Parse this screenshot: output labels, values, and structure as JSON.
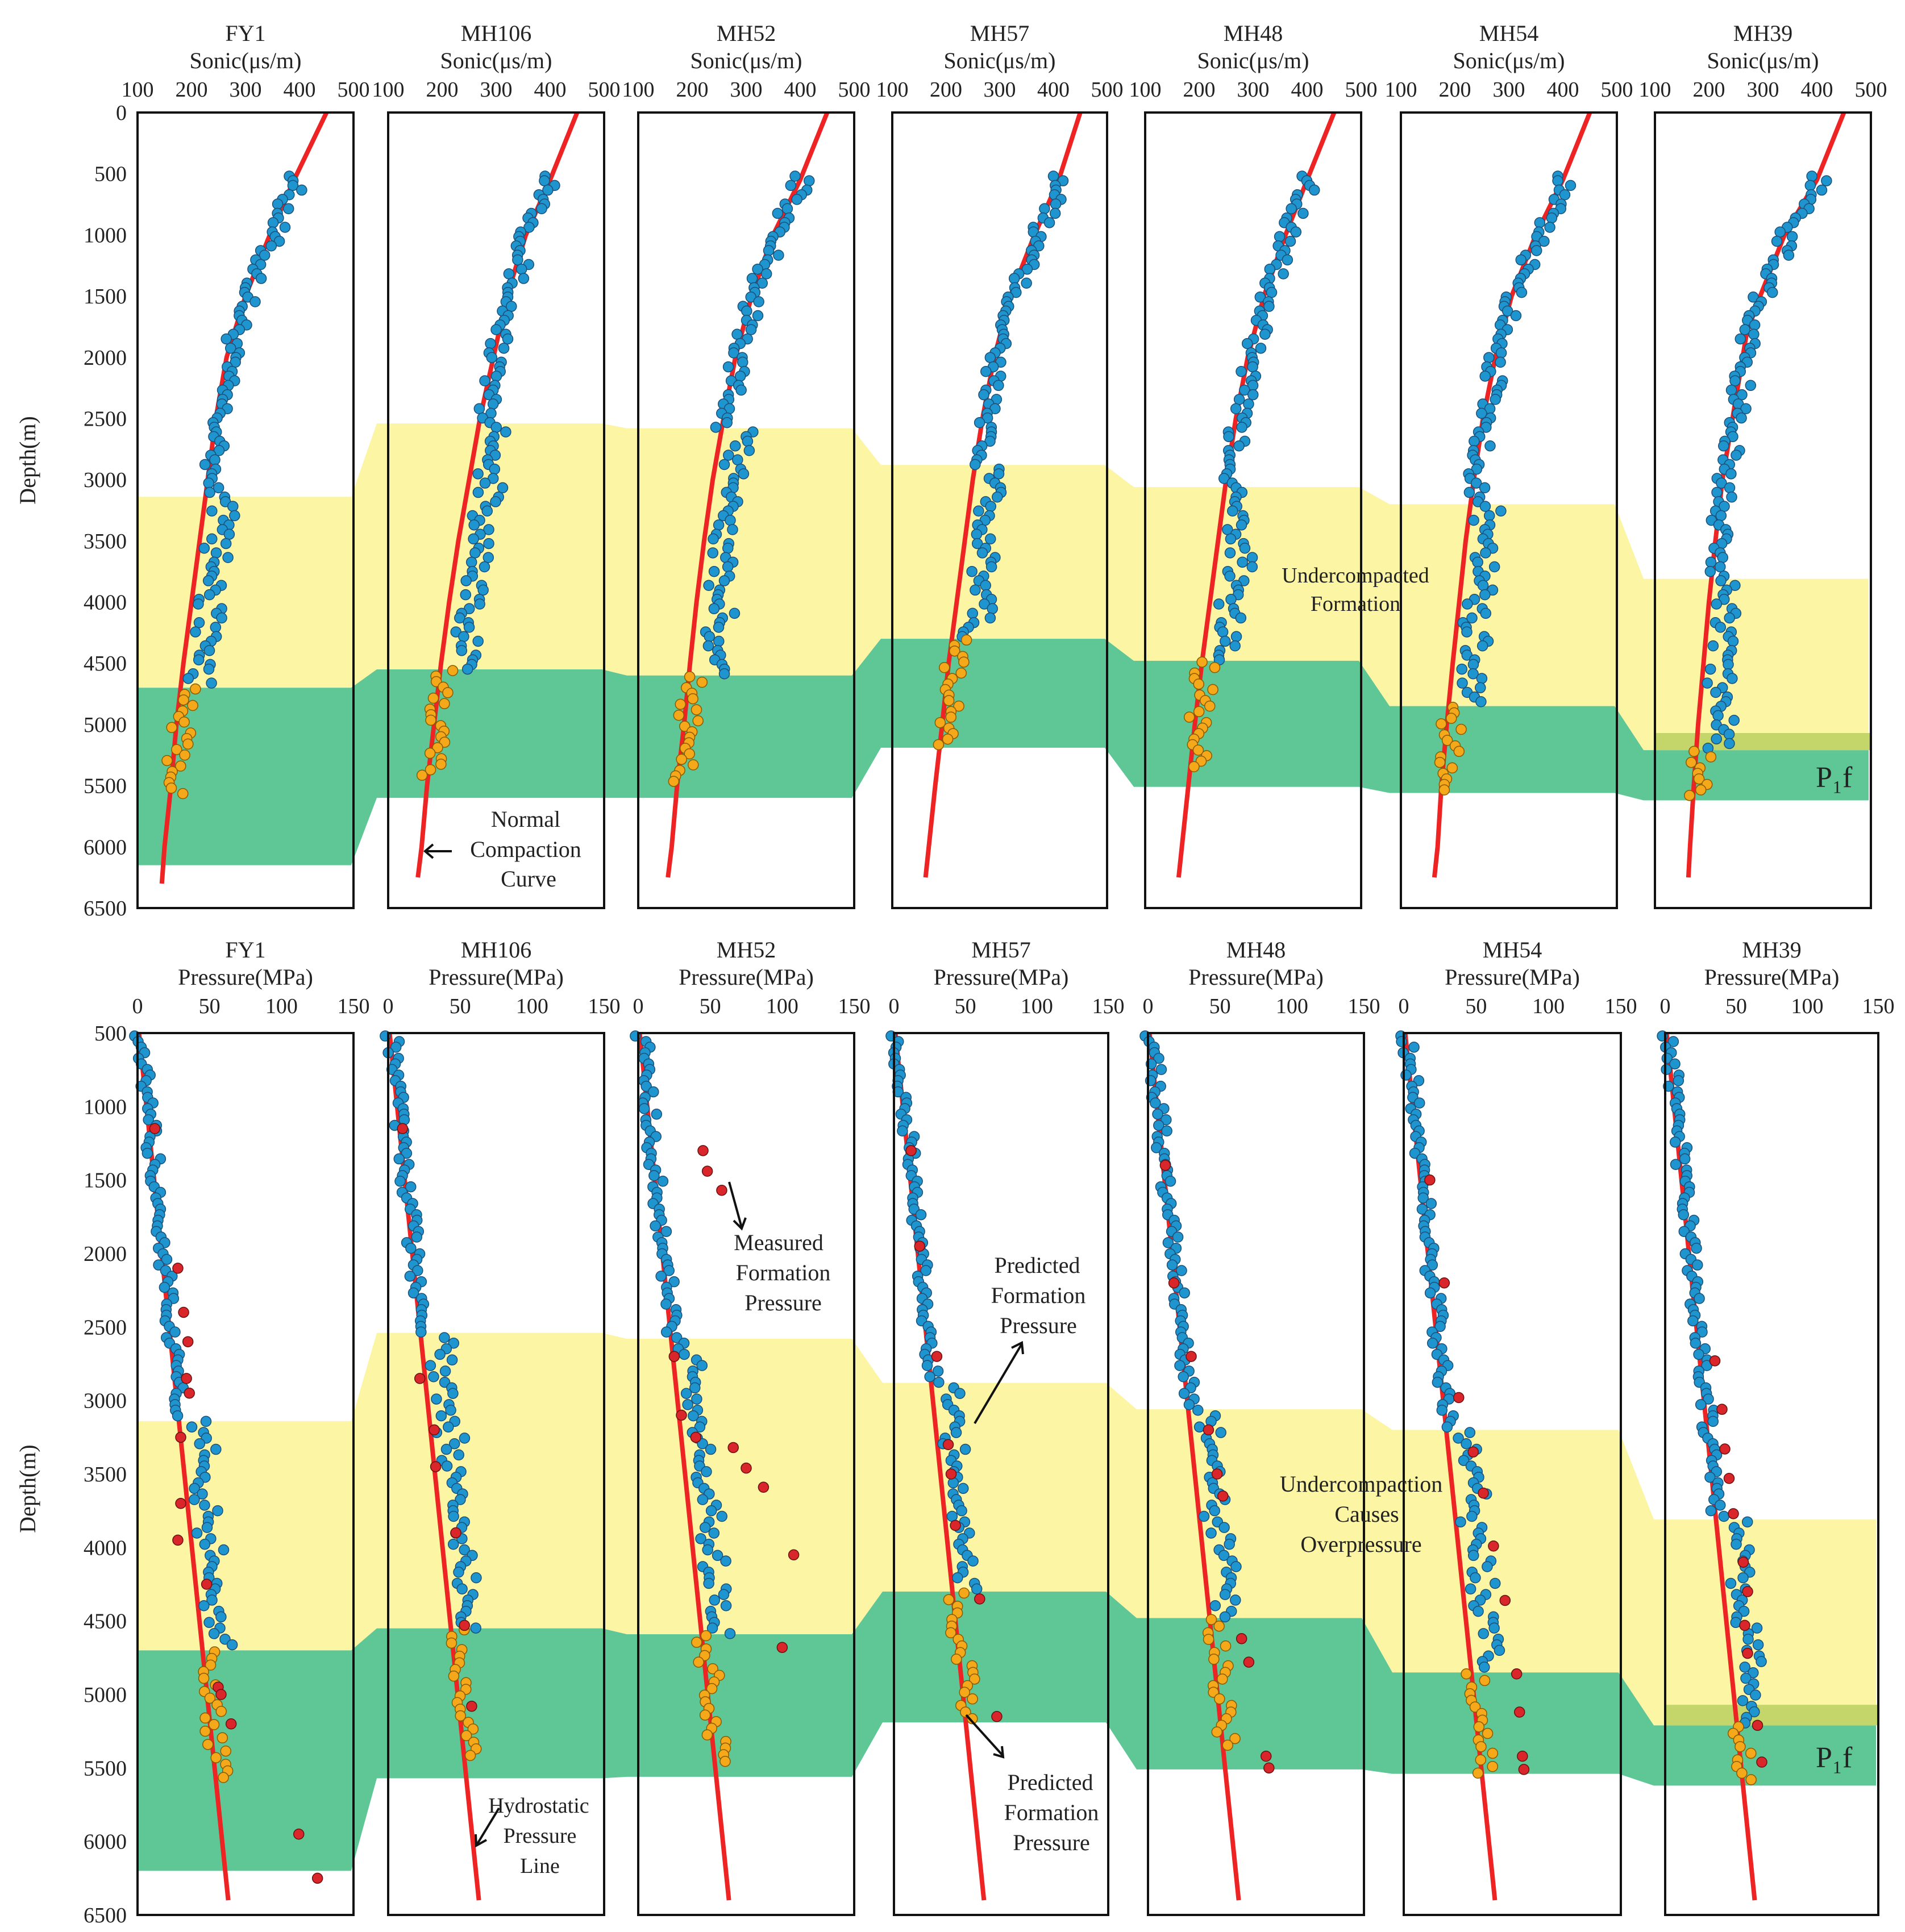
{
  "colors": {
    "undercompacted": "#fbf5a4",
    "pf_zone": "#5fc795",
    "pf_top_band": "#c4d66a",
    "curve": "#ee2424",
    "sonic_point": "#1f95cf",
    "pf_point": "#f5a91a",
    "measured_point": "#d8262a",
    "frame": "#111111"
  },
  "chart_data": [
    {
      "type": "scatter",
      "name": "sonic-logs",
      "ylabel": "Depth(m)",
      "ylim": [
        0,
        6500
      ],
      "yticks": [
        0,
        500,
        1000,
        1500,
        2000,
        2500,
        3000,
        3500,
        4000,
        4500,
        5000,
        5500,
        6000,
        6500
      ],
      "xlim": [
        100,
        500
      ],
      "xticks": [
        100,
        200,
        300,
        400,
        500
      ],
      "wells": [
        {
          "name": "FY1",
          "xlabel": "Sonic(μs/m)",
          "under_top": 3140,
          "pf_top": 4700,
          "pf_bottom": 6150,
          "curve": [
            [
              450,
              0
            ],
            [
              390,
              550
            ],
            [
              345,
              1000
            ],
            [
              300,
              1500
            ],
            [
              265,
              2000
            ],
            [
              245,
              2500
            ],
            [
              230,
              3000
            ],
            [
              215,
              3500
            ],
            [
              200,
              4000
            ],
            [
              185,
              4500
            ],
            [
              172,
              5000
            ],
            [
              162,
              5500
            ],
            [
              150,
              6000
            ],
            [
              145,
              6300
            ]
          ]
        },
        {
          "name": "MH106",
          "xlabel": "Sonic(μs/m)",
          "under_top": 2540,
          "pf_top": 4550,
          "pf_bottom": 5600,
          "curve": [
            [
              450,
              0
            ],
            [
              400,
              550
            ],
            [
              355,
              1000
            ],
            [
              320,
              1500
            ],
            [
              295,
              2000
            ],
            [
              270,
              2500
            ],
            [
              250,
              3000
            ],
            [
              230,
              3500
            ],
            [
              213,
              4000
            ],
            [
              198,
              4500
            ],
            [
              185,
              5000
            ],
            [
              172,
              5500
            ],
            [
              162,
              6000
            ],
            [
              155,
              6250
            ]
          ]
        },
        {
          "name": "MH52",
          "xlabel": "Sonic(μs/m)",
          "under_top": 2580,
          "pf_top": 4600,
          "pf_bottom": 5600,
          "curve": [
            [
              450,
              0
            ],
            [
              400,
              550
            ],
            [
              350,
              1000
            ],
            [
              310,
              1500
            ],
            [
              280,
              2000
            ],
            [
              258,
              2500
            ],
            [
              238,
              3000
            ],
            [
              222,
              3500
            ],
            [
              208,
              4000
            ],
            [
              196,
              4500
            ],
            [
              185,
              5000
            ],
            [
              172,
              5500
            ],
            [
              162,
              6000
            ],
            [
              155,
              6250
            ]
          ]
        },
        {
          "name": "MH57",
          "xlabel": "Sonic(μs/m)",
          "under_top": 2880,
          "pf_top": 4300,
          "pf_bottom": 5190,
          "curve": [
            [
              450,
              0
            ],
            [
              410,
              550
            ],
            [
              365,
              1000
            ],
            [
              320,
              1500
            ],
            [
              290,
              2000
            ],
            [
              268,
              2500
            ],
            [
              250,
              3000
            ],
            [
              235,
              3500
            ],
            [
              220,
              4000
            ],
            [
              205,
              4500
            ],
            [
              193,
              5000
            ],
            [
              180,
              5500
            ],
            [
              168,
              6000
            ],
            [
              162,
              6250
            ]
          ]
        },
        {
          "name": "MH48",
          "xlabel": "Sonic(μs/m)",
          "under_top": 3060,
          "pf_top": 4480,
          "pf_bottom": 5510,
          "curve": [
            [
              450,
              0
            ],
            [
              400,
              550
            ],
            [
              360,
              1000
            ],
            [
              320,
              1500
            ],
            [
              290,
              2000
            ],
            [
              268,
              2500
            ],
            [
              250,
              3000
            ],
            [
              235,
              3500
            ],
            [
              220,
              4000
            ],
            [
              205,
              4500
            ],
            [
              192,
              5000
            ],
            [
              180,
              5500
            ],
            [
              168,
              6000
            ],
            [
              162,
              6250
            ]
          ]
        },
        {
          "name": "MH54",
          "xlabel": "Sonic(μs/m)",
          "under_top": 3200,
          "pf_top": 4850,
          "pf_bottom": 5560,
          "curve": [
            [
              450,
              0
            ],
            [
              400,
              550
            ],
            [
              350,
              1000
            ],
            [
              305,
              1500
            ],
            [
              275,
              2000
            ],
            [
              252,
              2500
            ],
            [
              235,
              3000
            ],
            [
              220,
              3500
            ],
            [
              208,
              4000
            ],
            [
              196,
              4500
            ],
            [
              185,
              5000
            ],
            [
              175,
              5500
            ],
            [
              168,
              6000
            ],
            [
              162,
              6250
            ]
          ]
        },
        {
          "name": "MH39",
          "xlabel": "Sonic(μs/m)",
          "under_top": 3810,
          "pf_top": 5210,
          "pf_bottom": 5620,
          "pf_band_top": 5070,
          "curve": [
            [
              450,
              0
            ],
            [
              400,
              550
            ],
            [
              340,
              1000
            ],
            [
              295,
              1500
            ],
            [
              270,
              1800
            ],
            [
              255,
              2200
            ],
            [
              240,
              2600
            ],
            [
              225,
              3000
            ],
            [
              212,
              3500
            ],
            [
              200,
              4000
            ],
            [
              190,
              4500
            ],
            [
              180,
              5000
            ],
            [
              172,
              5500
            ],
            [
              165,
              6000
            ],
            [
              162,
              6250
            ]
          ]
        }
      ],
      "annotations": [
        "Undercompacted Formation",
        "Normal Compaction Curve",
        "P₁f"
      ]
    },
    {
      "type": "scatter",
      "name": "pressure-profiles",
      "ylabel": "Depth(m)",
      "ylim": [
        500,
        6500
      ],
      "yticks": [
        500,
        1000,
        1500,
        2000,
        2500,
        3000,
        3500,
        4000,
        4500,
        5000,
        5500,
        6000,
        6500
      ],
      "xlim": [
        0,
        150
      ],
      "xticks": [
        0,
        50,
        100,
        150
      ],
      "wells": [
        {
          "name": "FY1",
          "xlabel": "Pressure(MPa)",
          "under_top": 3140,
          "pf_top": 4700,
          "pf_bottom": 6200,
          "measured": [
            [
              12,
              1150
            ],
            [
              28,
              2100
            ],
            [
              32,
              2400
            ],
            [
              35,
              2600
            ],
            [
              34,
              2850
            ],
            [
              36,
              2950
            ],
            [
              30,
              3250
            ],
            [
              30,
              3700
            ],
            [
              28,
              3950
            ],
            [
              48,
              4250
            ],
            [
              56,
              4950
            ],
            [
              58,
              5000
            ],
            [
              65,
              5200
            ],
            [
              112,
              5950
            ],
            [
              125,
              6250
            ]
          ]
        },
        {
          "name": "MH106",
          "xlabel": "Pressure(MPa)",
          "under_top": 2540,
          "pf_top": 4550,
          "pf_bottom": 5570,
          "measured": [
            [
              10,
              1150
            ],
            [
              22,
              2850
            ],
            [
              32,
              3200
            ],
            [
              33,
              3450
            ],
            [
              47,
              3900
            ],
            [
              53,
              4530
            ],
            [
              58,
              5080
            ]
          ]
        },
        {
          "name": "MH52",
          "xlabel": "Pressure(MPa)",
          "under_top": 2580,
          "pf_top": 4590,
          "pf_bottom": 5560,
          "measured": [
            [
              45,
              1300
            ],
            [
              48,
              1440
            ],
            [
              58,
              1570
            ],
            [
              25,
              2700
            ],
            [
              30,
              3100
            ],
            [
              40,
              3250
            ],
            [
              66,
              3320
            ],
            [
              75,
              3460
            ],
            [
              87,
              3590
            ],
            [
              108,
              4050
            ],
            [
              100,
              4680
            ]
          ]
        },
        {
          "name": "MH57",
          "xlabel": "Pressure(MPa)",
          "under_top": 2880,
          "pf_top": 4300,
          "pf_bottom": 5190,
          "measured": [
            [
              12,
              1300
            ],
            [
              18,
              1950
            ],
            [
              30,
              2700
            ],
            [
              38,
              3300
            ],
            [
              40,
              3500
            ],
            [
              43,
              3850
            ],
            [
              60,
              4350
            ],
            [
              72,
              5150
            ]
          ]
        },
        {
          "name": "MH48",
          "xlabel": "Pressure(MPa)",
          "under_top": 3060,
          "pf_top": 4480,
          "pf_bottom": 5510,
          "measured": [
            [
              12,
              1400
            ],
            [
              18,
              2200
            ],
            [
              30,
              2700
            ],
            [
              42,
              3200
            ],
            [
              48,
              3500
            ],
            [
              52,
              3650
            ],
            [
              65,
              4620
            ],
            [
              70,
              4780
            ],
            [
              82,
              5420
            ],
            [
              84,
              5500
            ]
          ]
        },
        {
          "name": "MH54",
          "xlabel": "Pressure(MPa)",
          "under_top": 3200,
          "pf_top": 4850,
          "pf_bottom": 5540,
          "measured": [
            [
              18,
              1500
            ],
            [
              28,
              2200
            ],
            [
              38,
              2980
            ],
            [
              48,
              3350
            ],
            [
              55,
              3630
            ],
            [
              62,
              3990
            ],
            [
              70,
              4360
            ],
            [
              78,
              4860
            ],
            [
              80,
              5120
            ],
            [
              82,
              5420
            ],
            [
              83,
              5510
            ]
          ]
        },
        {
          "name": "MH39",
          "xlabel": "Pressure(MPa)",
          "under_top": 3810,
          "pf_top": 5210,
          "pf_bottom": 5620,
          "pf_band_top": 5070,
          "measured": [
            [
              35,
              2730
            ],
            [
              40,
              3060
            ],
            [
              42,
              3330
            ],
            [
              45,
              3530
            ],
            [
              48,
              3770
            ],
            [
              55,
              4100
            ],
            [
              58,
              4300
            ],
            [
              56,
              4530
            ],
            [
              58,
              4720
            ],
            [
              65,
              5210
            ],
            [
              68,
              5460
            ]
          ]
        }
      ],
      "annotations": [
        "Measured Formation Pressure",
        "Predicted Formation Pressure",
        "Predicted Formation Pressure",
        "Undercompaction Causes Overpressure",
        "Hydrostatic Pressure Line",
        "P₁f"
      ]
    }
  ],
  "labels": {
    "ylabel_top": "Depth(m)",
    "ylabel_bottom": "Depth(m)",
    "undercompacted_line1": "Undercompacted",
    "undercompacted_line2": "Formation",
    "normal_line1": "Normal",
    "normal_line2": "Compaction",
    "normal_line3": "Curve",
    "pf_label_top": "P₁f",
    "pf_label_bottom": "P₁f",
    "measured_line1": "Measured",
    "measured_line2": "Formation",
    "measured_line3": "Pressure",
    "predicted1_line1": "Predicted",
    "predicted1_line2": "Formation",
    "predicted1_line3": "Pressure",
    "predicted2_line1": "Predicted",
    "predicted2_line2": "Formation",
    "predicted2_line3": "Pressure",
    "overpressure_line1": "Undercompaction",
    "overpressure_line2": "Causes",
    "overpressure_line3": "Overpressure",
    "hydro_line1": "Hydrostatic",
    "hydro_line2": "Pressure",
    "hydro_line3": "Line"
  }
}
